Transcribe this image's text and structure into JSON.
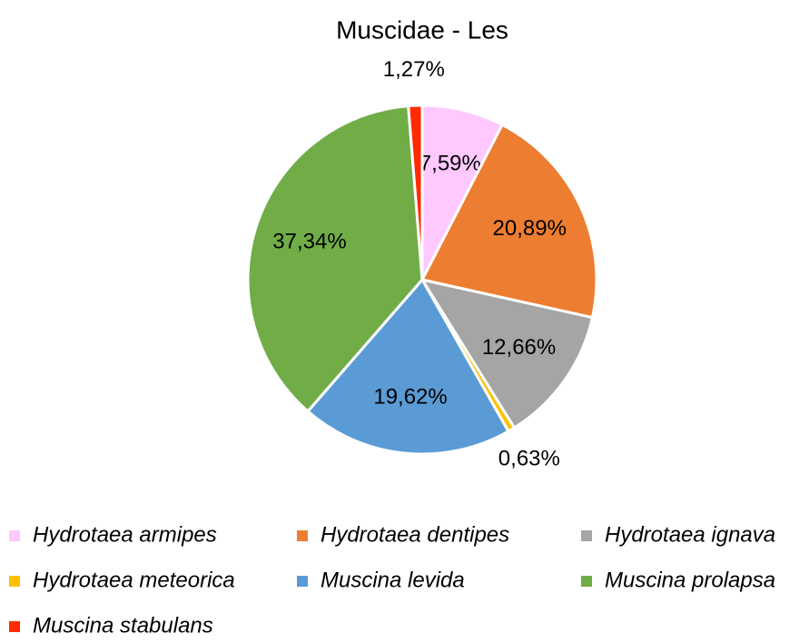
{
  "chart_data": {
    "type": "pie",
    "title": "Muscidae - Les",
    "categories": [
      "Hydrotaea armipes",
      "Hydrotaea dentipes",
      "Hydrotaea ignava",
      "Hydrotaea meteorica",
      "Muscina levida",
      "Muscina prolapsa",
      "Muscina stabulans"
    ],
    "values": [
      7.59,
      20.89,
      12.66,
      0.63,
      19.62,
      37.34,
      1.27
    ],
    "value_labels": [
      "7,59%",
      "20,89%",
      "12,66%",
      "0,63%",
      "19,62%",
      "37,34%",
      "1,27%"
    ],
    "colors": [
      "#ffc8ff",
      "#ed7d31",
      "#a5a5a5",
      "#ffc000",
      "#5b9bd5",
      "#70ad47",
      "#ff2a00"
    ],
    "legend": "bottom"
  }
}
